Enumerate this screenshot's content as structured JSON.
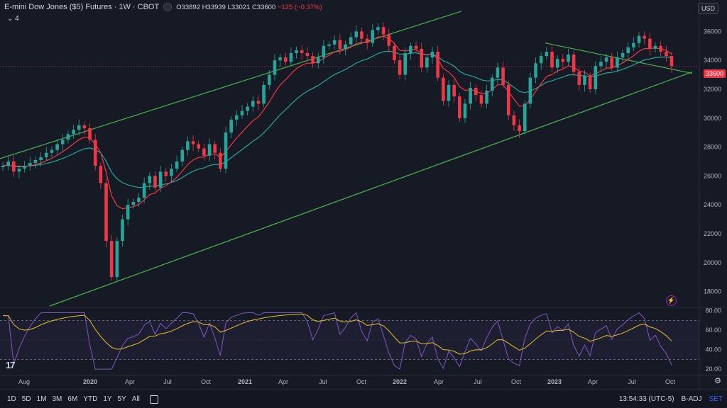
{
  "legend": {
    "title": "E-mini Dow Jones ($5) Futures · 1W · CBOT",
    "open": "O33892",
    "high": "H33939",
    "low": "L33021",
    "close": "C33600",
    "change": "−125 (−0.37%)"
  },
  "collapse_label": "4",
  "currency": "USD",
  "last_price": "33600",
  "colors": {
    "background": "#161a25",
    "up": "#26a69a",
    "down": "#f23645",
    "ema_fast": "#f23645",
    "ema_slow": "#26a69a",
    "channel": "#4caf50",
    "rsi": "#7e57c2",
    "rsi_ma": "#e6c229",
    "rsi_band": "#7e57c2"
  },
  "price_axis": {
    "labels": [
      "36000",
      "34000",
      "32000",
      "30000",
      "28000",
      "26000",
      "24000",
      "22000",
      "20000",
      "18000"
    ]
  },
  "rsi_axis": {
    "labels": [
      "80.00",
      "60.00",
      "40.00",
      "20.00"
    ]
  },
  "time_axis": {
    "labels": [
      "Aug",
      "2020",
      "Apr",
      "Jul",
      "Oct",
      "2021",
      "Apr",
      "Jul",
      "Oct",
      "2022",
      "Apr",
      "Jul",
      "Oct",
      "2023",
      "Apr",
      "Jul",
      "Oct"
    ]
  },
  "bottom_bar": {
    "timeframes": [
      "1D",
      "5D",
      "1M",
      "3M",
      "6M",
      "YTD",
      "1Y",
      "5Y",
      "All"
    ],
    "clock": "13:54:33 (UTC-5)",
    "badj": "B-ADJ",
    "set": "SET"
  },
  "logo_text": "17",
  "chart_data": {
    "type": "candlestick",
    "title": "E-mini Dow Jones ($5) Futures · 1W · CBOT",
    "y_range": [
      17000,
      37000
    ],
    "rsi_range": [
      15,
      82
    ],
    "rsi_levels": [
      70,
      30
    ],
    "close_series_approx": [
      26700,
      27000,
      26300,
      26500,
      26700,
      26900,
      27100,
      27300,
      27600,
      27800,
      28200,
      28500,
      28900,
      29200,
      29500,
      29300,
      28500,
      26700,
      25500,
      21500,
      19000,
      21500,
      23000,
      24000,
      24200,
      24500,
      25500,
      26000,
      25200,
      26300,
      26000,
      26500,
      27000,
      27800,
      28400,
      28200,
      27900,
      27400,
      28200,
      27600,
      26500,
      29000,
      29900,
      30200,
      30500,
      30800,
      31200,
      31000,
      32300,
      33000,
      34000,
      34200,
      33900,
      34500,
      34700,
      34500,
      34300,
      33800,
      34200,
      35000,
      35100,
      35400,
      34800,
      35100,
      35600,
      36000,
      35500,
      35200,
      36100,
      36300,
      35800,
      35000,
      34000,
      33000,
      34500,
      35000,
      34800,
      33500,
      34200,
      34600,
      32800,
      31200,
      32300,
      31500,
      30000,
      31000,
      32100,
      31600,
      31000,
      31900,
      32800,
      33500,
      32300,
      30200,
      29500,
      29100,
      31000,
      32800,
      33800,
      34300,
      34600,
      33500,
      34100,
      33900,
      34400,
      33200,
      32300,
      32900,
      32000,
      33600,
      33900,
      34200,
      33500,
      34200,
      34500,
      34900,
      35200,
      35700,
      35500,
      34800,
      35000,
      34600,
      34300,
      33600
    ],
    "ema_fast_approx": "red moving average tracking price",
    "ema_slow_approx": "teal moving average tracking price"
  }
}
